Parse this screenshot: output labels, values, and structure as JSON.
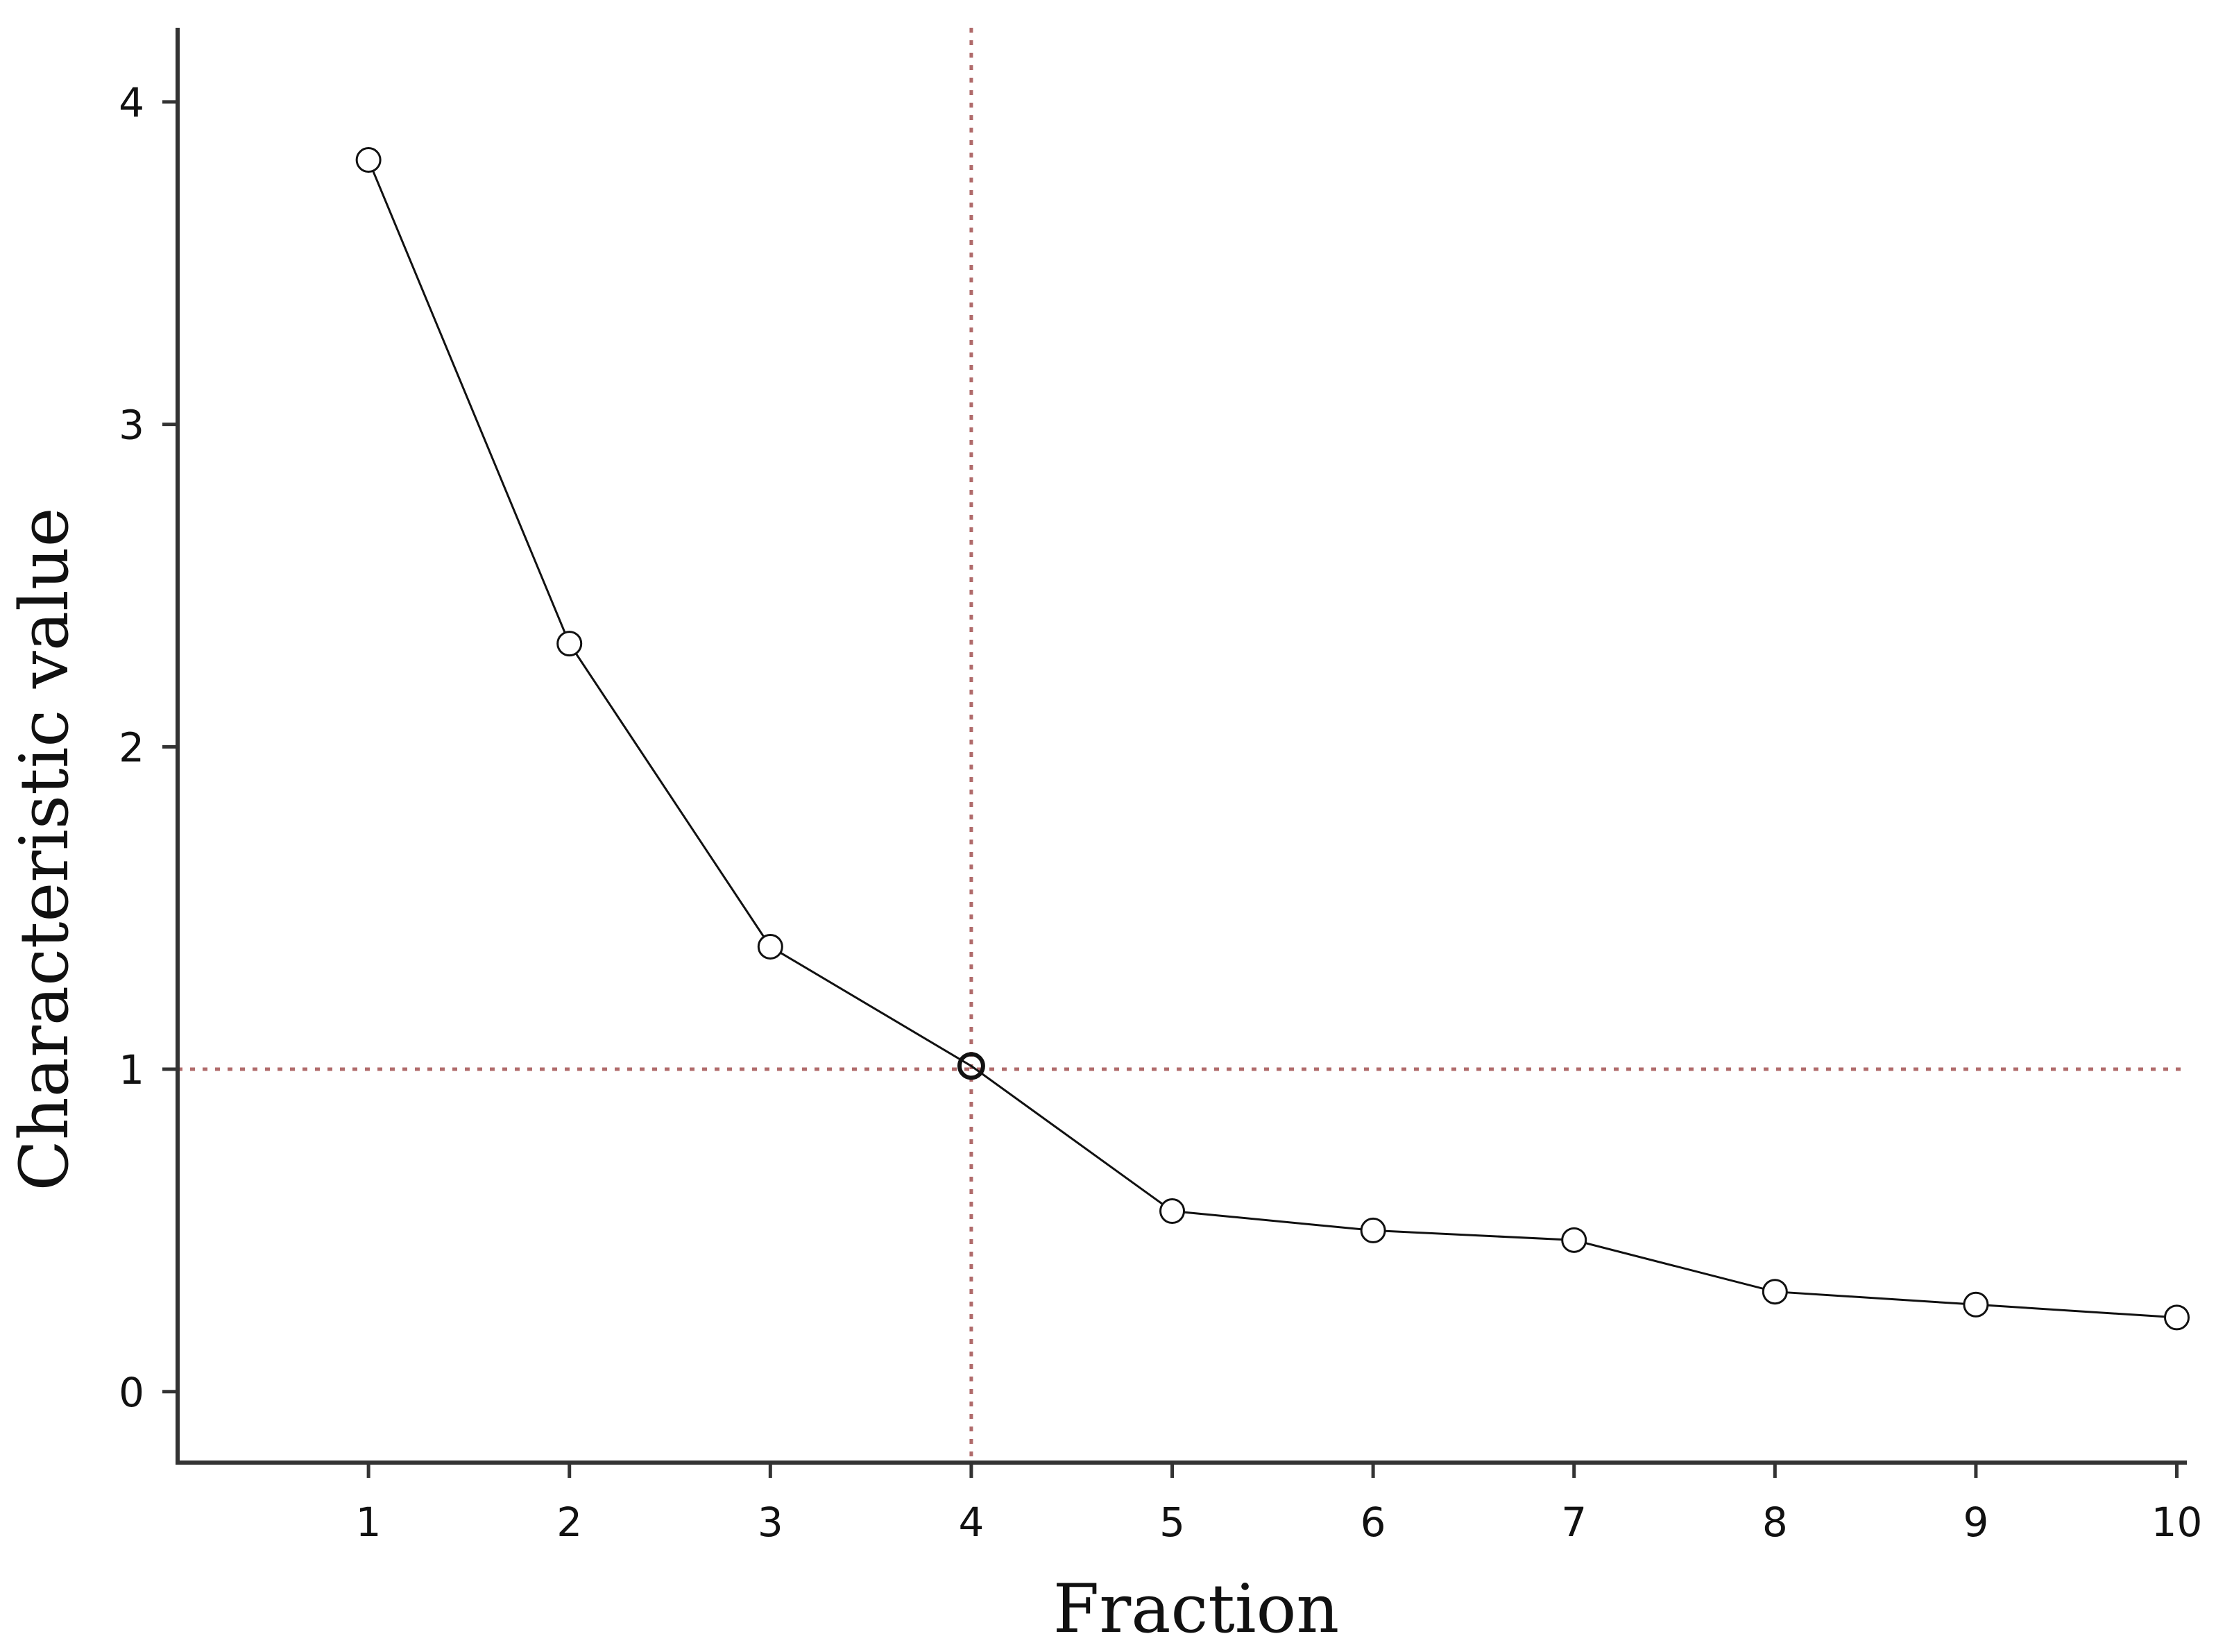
{
  "chart_data": {
    "type": "line",
    "title": "",
    "xlabel": "Fraction",
    "ylabel": "Characteristic value",
    "x": [
      1,
      2,
      3,
      4,
      5,
      6,
      7,
      8,
      9,
      10
    ],
    "series": [
      {
        "name": "",
        "values": [
          3.82,
          2.32,
          1.38,
          1.01,
          0.56,
          0.5,
          0.47,
          0.31,
          0.27,
          0.23
        ]
      }
    ],
    "xticks": [
      1,
      2,
      3,
      4,
      5,
      6,
      7,
      8,
      9,
      10
    ],
    "yticks": [
      0,
      1,
      2,
      3,
      4
    ],
    "xlim": [
      0.05,
      10.05
    ],
    "ylim": [
      -0.22,
      4.23
    ],
    "grid": false,
    "legend": "none",
    "reference_lines": {
      "vertical_x": 4,
      "horizontal_y": 1,
      "style": "dotted",
      "color": "#b06b6b"
    },
    "highlight_point_index": 3,
    "colors": {
      "series": "#111111",
      "axis": "#333333",
      "reference": "#b06b6b"
    }
  }
}
